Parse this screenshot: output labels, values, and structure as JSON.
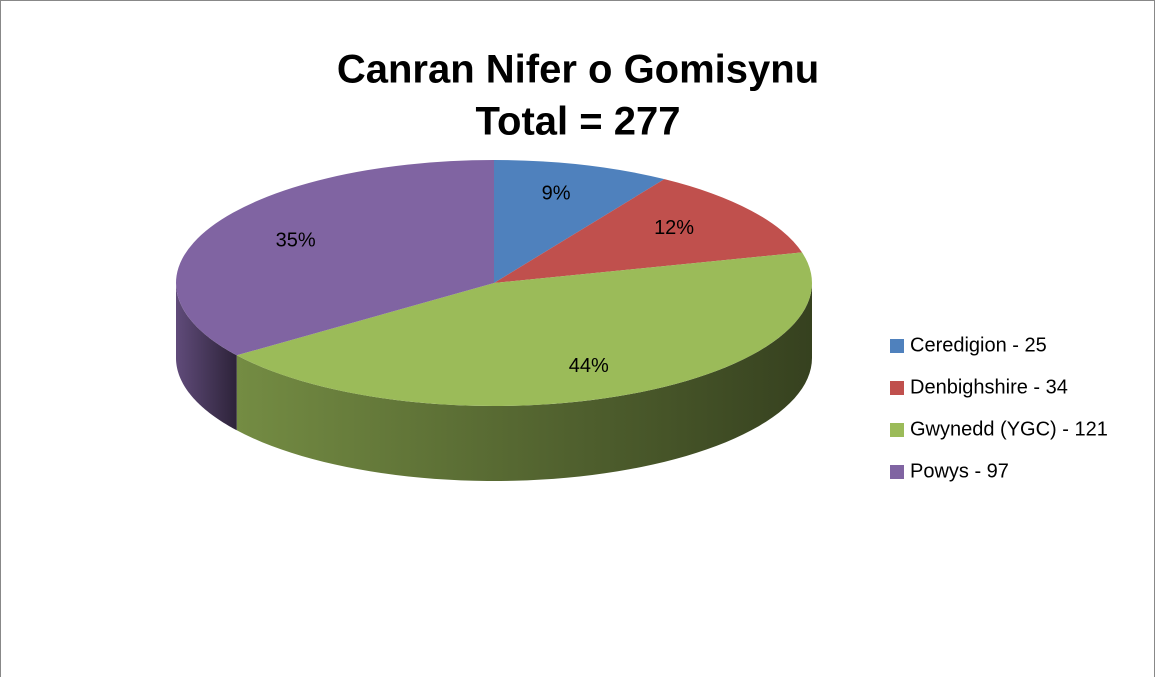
{
  "chart_data": {
    "type": "pie",
    "title": "Canran Nifer o Gomisynu",
    "subtitle": "Total = 277",
    "categories": [
      "Ceredigion - 25",
      "Denbighshire - 34",
      "Gwynedd (YGC) - 121",
      "Powys - 97"
    ],
    "values": [
      9,
      12,
      44,
      35
    ],
    "value_labels": [
      "9%",
      "12%",
      "44%",
      "35%"
    ],
    "colors": [
      "#4f81bd",
      "#c0504d",
      "#9bbb59",
      "#8064a2"
    ],
    "legend": "right"
  }
}
